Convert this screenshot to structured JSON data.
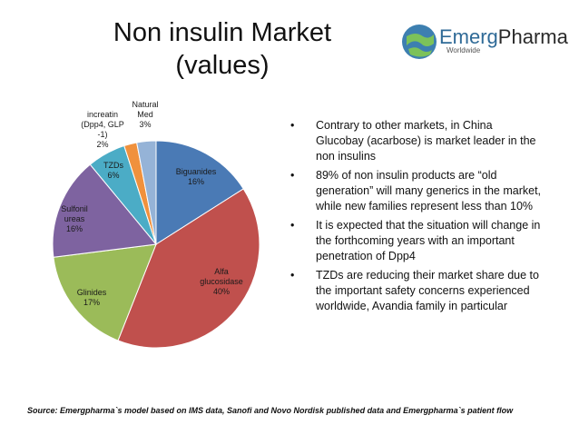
{
  "title_lines": [
    "Non insulin Market",
    "(values)"
  ],
  "logo": {
    "word_a": "Emerg",
    "word_b": "Pharma",
    "tagline": "Worldwide"
  },
  "chart_data": {
    "type": "pie",
    "title": "Non insulin Market (values)",
    "slices": [
      {
        "label_lines": [
          "Biguanides",
          "16%"
        ],
        "value": 16,
        "color": "#4a7ab5"
      },
      {
        "label_lines": [
          "Alfa",
          "glucosidase",
          "40%"
        ],
        "value": 40,
        "color": "#c0504d"
      },
      {
        "label_lines": [
          "Glinides",
          "17%"
        ],
        "value": 17,
        "color": "#9bbb59"
      },
      {
        "label_lines": [
          "Sulfonil",
          "ureas",
          "16%"
        ],
        "value": 16,
        "color": "#7e63a0"
      },
      {
        "label_lines": [
          "TZDs",
          "6%"
        ],
        "value": 6,
        "color": "#4bacc6"
      },
      {
        "label_lines": [
          "increatin",
          "(Dpp4, GLP",
          "-1)",
          "2%"
        ],
        "value": 2,
        "color": "#f0913d"
      },
      {
        "label_lines": [
          "Natural",
          "Med",
          "3%"
        ],
        "value": 3,
        "color": "#95b3d7"
      }
    ]
  },
  "bullets": [
    "Contrary to other markets, in China Glucobay (acarbose) is market leader in the non insulins",
    "89% of non insulin products are “old generation” will many generics in the market, while new families represent less than 10%",
    "It is expected that the situation will change in the forthcoming years with an important penetration of Dpp4",
    " TZDs are reducing their market share due to the important safety concerns experienced worldwide, Avandia family in particular"
  ],
  "bullet_symbol": "•",
  "source": "Source: Emergpharma`s model based on IMS data, Sanofi and Novo Nordisk published data and Emergpharma`s patient flow"
}
